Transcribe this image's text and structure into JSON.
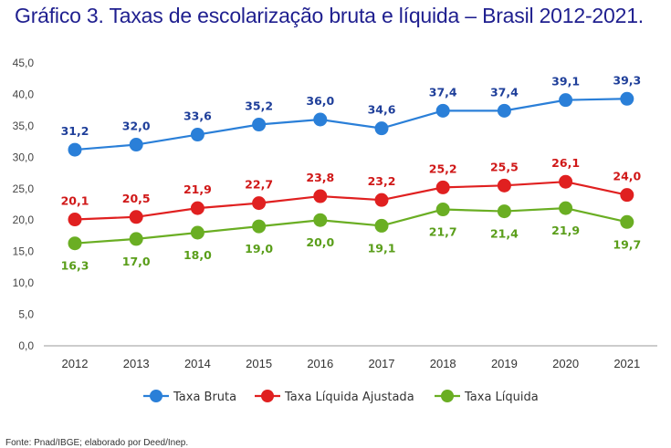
{
  "title": "Gráfico 3. Taxas de escolarização bruta e líquida – Brasil 2012-2021.",
  "source": "Fonte: Pnad/IBGE; elaborado por Deed/Inep.",
  "chart_data": {
    "type": "line",
    "title": "Gráfico 3. Taxas de escolarização bruta e líquida – Brasil 2012-2021.",
    "xlabel": "",
    "ylabel": "",
    "categories": [
      "2012",
      "2013",
      "2014",
      "2015",
      "2016",
      "2017",
      "2018",
      "2019",
      "2020",
      "2021"
    ],
    "ylim": [
      0,
      45
    ],
    "yticks": [
      "0,0",
      "5,0",
      "10,0",
      "15,0",
      "20,0",
      "25,0",
      "30,0",
      "35,0",
      "40,0",
      "45,0"
    ],
    "grid": false,
    "legend_position": "bottom",
    "series": [
      {
        "name": "Taxa Bruta",
        "color": "#2a7fd8",
        "label_color": "#1f3f9a",
        "values": [
          31.2,
          32.0,
          33.6,
          35.2,
          36.0,
          34.6,
          37.4,
          37.4,
          39.1,
          39.3
        ],
        "labels": [
          "31,2",
          "32,0",
          "33,6",
          "35,2",
          "36,0",
          "34,6",
          "37,4",
          "37,4",
          "39,1",
          "39,3"
        ],
        "label_side": "above"
      },
      {
        "name": "Taxa Líquida Ajustada",
        "color": "#e02020",
        "label_color": "#d01818",
        "values": [
          20.1,
          20.5,
          21.9,
          22.7,
          23.8,
          23.2,
          25.2,
          25.5,
          26.1,
          24.0
        ],
        "labels": [
          "20,1",
          "20,5",
          "21,9",
          "22,7",
          "23,8",
          "23,2",
          "25,2",
          "25,5",
          "26,1",
          "24,0"
        ],
        "label_side": "above"
      },
      {
        "name": "Taxa Líquida",
        "color": "#6aae23",
        "label_color": "#5a9e1a",
        "values": [
          16.3,
          17.0,
          18.0,
          19.0,
          20.0,
          19.1,
          21.7,
          21.4,
          21.9,
          19.7
        ],
        "labels": [
          "16,3",
          "17,0",
          "18,0",
          "19,0",
          "20,0",
          "19,1",
          "21,7",
          "21,4",
          "21,9",
          "19,7"
        ],
        "label_side": "below"
      }
    ]
  }
}
